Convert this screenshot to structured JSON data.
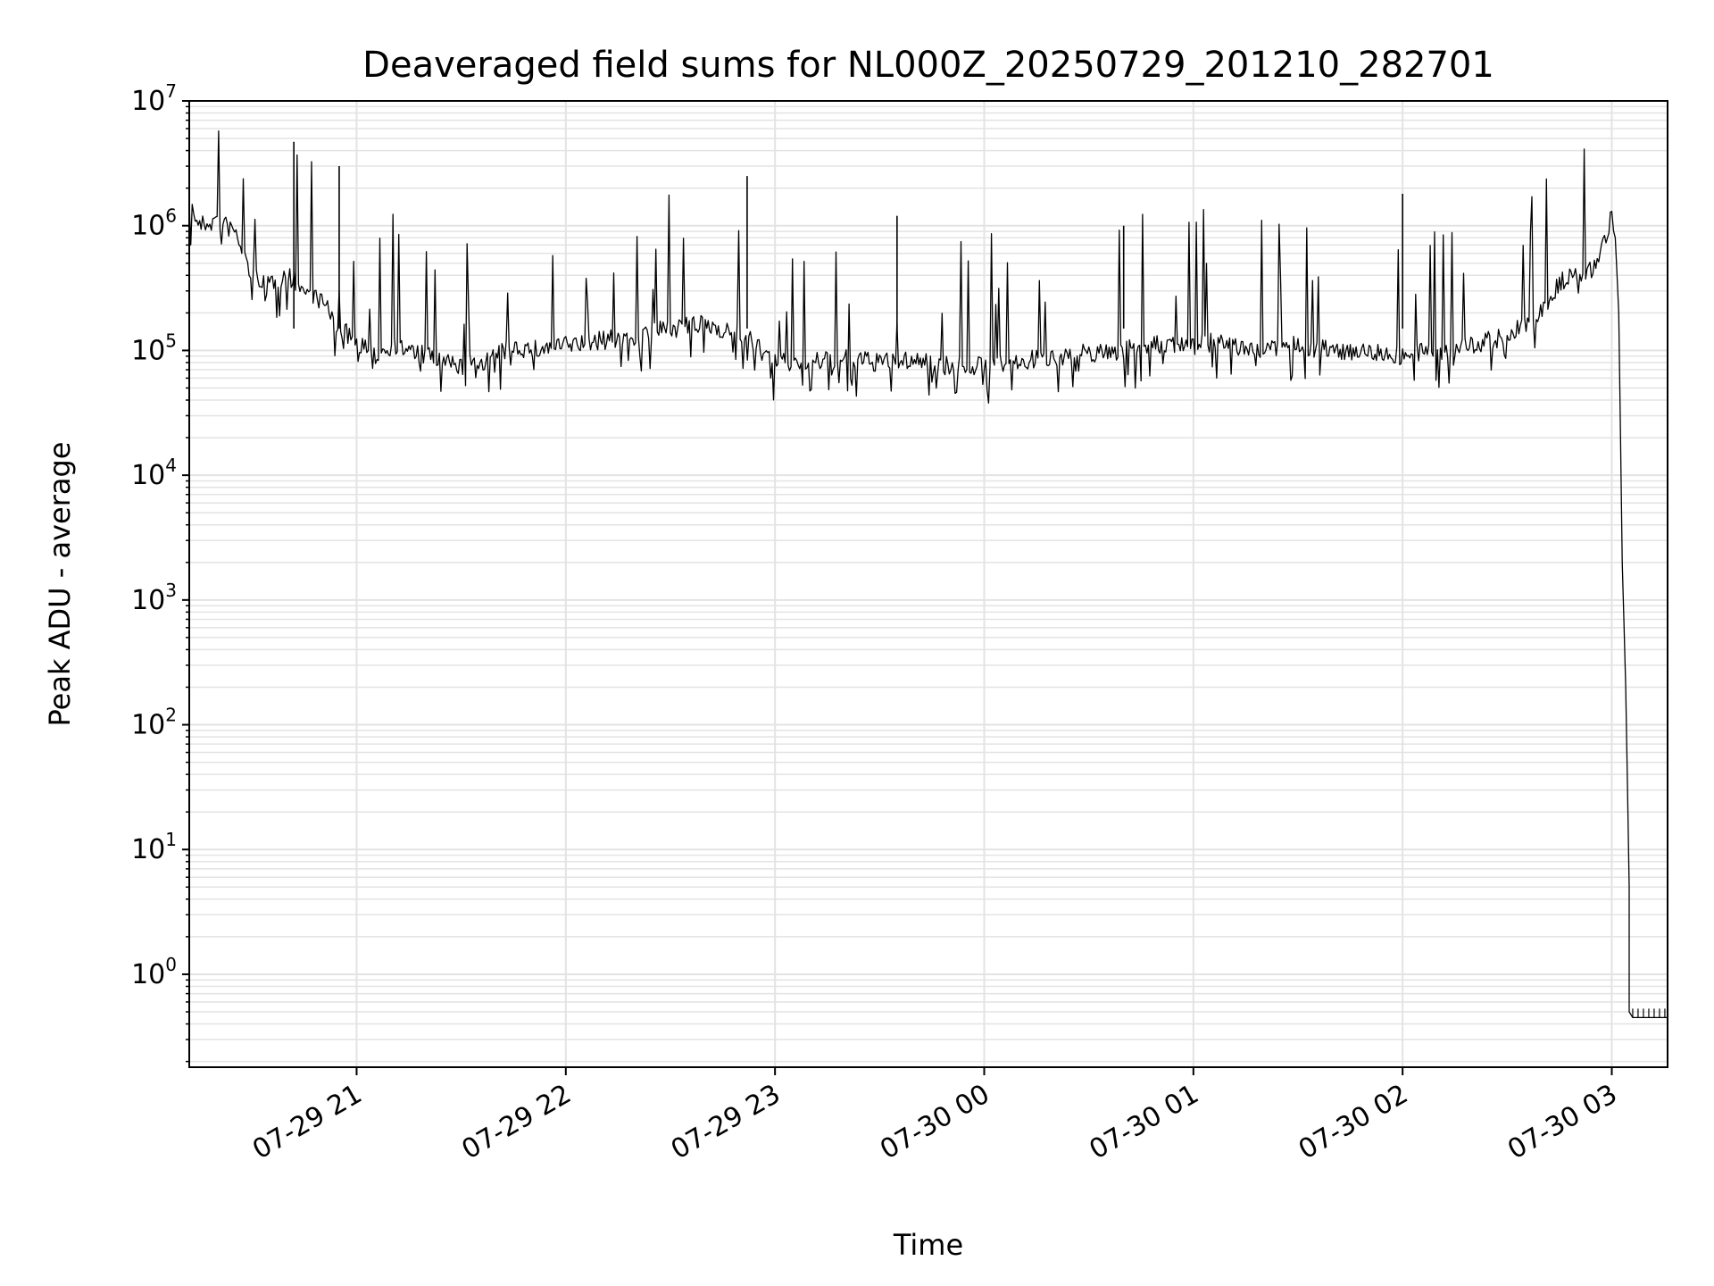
{
  "chart_data": {
    "type": "line",
    "title": "Deaveraged field sums for NL000Z_20250729_201210_282701",
    "xlabel": "Time",
    "ylabel": "Peak ADU - average",
    "yscale": "log",
    "ylim": [
      0.18,
      10000000
    ],
    "yticks": [
      {
        "base": "10",
        "exp": "0",
        "value": 1
      },
      {
        "base": "10",
        "exp": "1",
        "value": 10
      },
      {
        "base": "10",
        "exp": "2",
        "value": 100
      },
      {
        "base": "10",
        "exp": "3",
        "value": 1000
      },
      {
        "base": "10",
        "exp": "4",
        "value": 10000
      },
      {
        "base": "10",
        "exp": "5",
        "value": 100000
      },
      {
        "base": "10",
        "exp": "6",
        "value": 1000000
      },
      {
        "base": "10",
        "exp": "7",
        "value": 10000000
      }
    ],
    "xlim": [
      "2025-07-29 20:12",
      "2025-07-30 03:16"
    ],
    "xticks": [
      {
        "label": "07-29 21",
        "time": "2025-07-29 21:00"
      },
      {
        "label": "07-29 22",
        "time": "2025-07-29 22:00"
      },
      {
        "label": "07-29 23",
        "time": "2025-07-29 23:00"
      },
      {
        "label": "07-30 00",
        "time": "2025-07-30 00:00"
      },
      {
        "label": "07-30 01",
        "time": "2025-07-30 01:00"
      },
      {
        "label": "07-30 02",
        "time": "2025-07-30 02:00"
      },
      {
        "label": "07-30 03",
        "time": "2025-07-30 03:00"
      }
    ],
    "grid": true,
    "line_color": "#000000",
    "grid_color": "#e3e3e3",
    "series": [
      {
        "x": [
          "2025-07-29 20:12",
          "2025-07-29 20:15",
          "2025-07-29 20:20",
          "2025-07-29 20:25",
          "2025-07-29 20:30",
          "2025-07-29 20:35",
          "2025-07-29 20:40",
          "2025-07-29 20:45",
          "2025-07-29 20:50",
          "2025-07-29 20:55",
          "2025-07-29 21:00",
          "2025-07-29 21:05",
          "2025-07-29 21:10",
          "2025-07-29 21:15",
          "2025-07-29 21:20",
          "2025-07-29 21:25",
          "2025-07-29 21:30",
          "2025-07-29 21:35",
          "2025-07-29 21:40",
          "2025-07-29 21:45",
          "2025-07-29 21:50",
          "2025-07-29 21:55",
          "2025-07-29 22:00",
          "2025-07-29 22:10",
          "2025-07-29 22:20",
          "2025-07-29 22:30",
          "2025-07-29 22:40",
          "2025-07-29 22:50",
          "2025-07-29 23:00",
          "2025-07-29 23:10",
          "2025-07-29 23:20",
          "2025-07-29 23:30",
          "2025-07-29 23:40",
          "2025-07-29 23:50",
          "2025-07-30 00:00",
          "2025-07-30 00:10",
          "2025-07-30 00:20",
          "2025-07-30 00:30",
          "2025-07-30 00:40",
          "2025-07-30 00:50",
          "2025-07-30 01:00",
          "2025-07-30 01:10",
          "2025-07-30 01:20",
          "2025-07-30 01:30",
          "2025-07-30 01:40",
          "2025-07-30 01:50",
          "2025-07-30 02:00",
          "2025-07-30 02:10",
          "2025-07-30 02:20",
          "2025-07-30 02:30",
          "2025-07-30 02:40",
          "2025-07-30 02:45",
          "2025-07-30 02:50",
          "2025-07-30 02:55",
          "2025-07-30 03:00",
          "2025-07-30 03:01",
          "2025-07-30 03:02",
          "2025-07-30 03:03",
          "2025-07-30 03:04",
          "2025-07-30 03:05",
          "2025-07-30 03:05",
          "2025-07-30 03:06",
          "2025-07-30 03:16"
        ],
        "y": [
          1500000,
          1000000,
          1100000,
          900000,
          400000,
          350000,
          400000,
          300000,
          250000,
          150000,
          120000,
          90000,
          110000,
          100000,
          90000,
          80000,
          75000,
          80000,
          90000,
          110000,
          100000,
          105000,
          110000,
          120000,
          130000,
          150000,
          160000,
          140000,
          80000,
          80000,
          85000,
          80000,
          85000,
          75000,
          75000,
          80000,
          90000,
          95000,
          100000,
          110000,
          120000,
          110000,
          100000,
          110000,
          100000,
          100000,
          90000,
          100000,
          110000,
          130000,
          200000,
          350000,
          400000,
          450000,
          1200000,
          800000,
          200000,
          2000,
          200,
          5,
          0.5,
          0.45,
          0.45
        ]
      }
    ],
    "spikes": [
      {
        "x": "2025-07-29 20:42",
        "y": 4700000
      },
      {
        "x": "2025-07-29 20:55",
        "y": 3000000
      },
      {
        "x": "2025-07-29 22:52",
        "y": 2500000
      },
      {
        "x": "2025-07-30 02:00",
        "y": 1800000
      },
      {
        "x": "2025-07-30 00:40",
        "y": 1000000
      },
      {
        "x": "2025-07-29 23:35",
        "y": 1200000
      }
    ]
  }
}
